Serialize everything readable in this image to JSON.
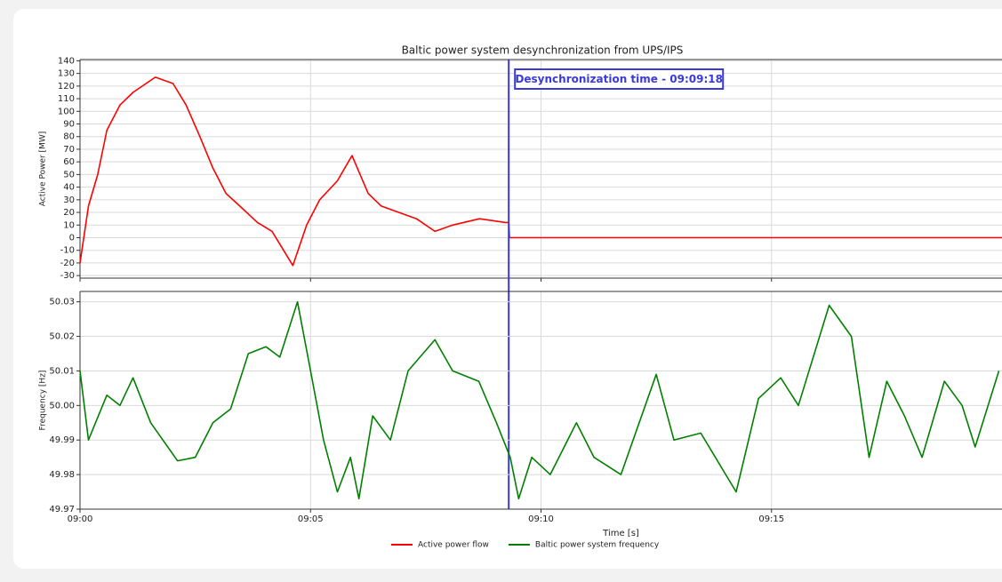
{
  "chart_data": [
    {
      "type": "line",
      "title": "Baltic power system desynchronization from UPS/IPS",
      "ylabel": "Active Power [MW]",
      "xlim": [
        "09:00:00",
        "09:20:00"
      ],
      "xticks": [
        "09:00:00",
        "09:05:00",
        "09:10:00",
        "09:15:00"
      ],
      "ylim": [
        -32,
        141
      ],
      "yticks": [
        -30,
        -20,
        -10,
        0,
        10,
        20,
        30,
        40,
        50,
        60,
        70,
        80,
        90,
        100,
        110,
        120,
        130,
        140
      ],
      "grid": true,
      "legend": "lower center",
      "annotation": {
        "text": "Desynchronization time - 09:09:18",
        "x": "09:09:18",
        "color": "#3a3ad8"
      },
      "x": [
        "09:00:00",
        "09:00:11",
        "09:00:23",
        "09:00:35",
        "09:00:52",
        "09:01:09",
        "09:01:38",
        "09:02:01",
        "09:02:18",
        "09:02:36",
        "09:02:53",
        "09:03:10",
        "09:03:28",
        "09:03:51",
        "09:04:10",
        "09:04:37",
        "09:04:55",
        "09:05:12",
        "09:05:35",
        "09:05:54",
        "09:06:15",
        "09:06:32",
        "09:07:18",
        "09:07:42",
        "09:08:05",
        "09:08:40",
        "09:09:14",
        "09:09:18",
        "09:09:19",
        "09:20:00"
      ],
      "series": [
        {
          "name": "Active power flow",
          "color": "#ff0000",
          "values": [
            -20,
            25,
            50,
            85,
            105,
            115,
            127,
            122,
            105,
            80,
            55,
            35,
            25,
            12,
            5,
            -22,
            10,
            30,
            45,
            65,
            35,
            25,
            15,
            5,
            10,
            15,
            12,
            12,
            0,
            0
          ]
        }
      ]
    },
    {
      "type": "line",
      "ylabel": "Frequency [Hz]",
      "xlabel": "Time [s]",
      "xlim": [
        "09:00:00",
        "09:20:00"
      ],
      "xticks": [
        {
          "value": "09:00:00",
          "label": "09:00"
        },
        {
          "value": "09:05:00",
          "label": "09:05"
        },
        {
          "value": "09:10:00",
          "label": "09:10"
        },
        {
          "value": "09:15:00",
          "label": "09:15"
        }
      ],
      "ylim": [
        49.97,
        50.033
      ],
      "yticks": [
        49.97,
        49.98,
        49.99,
        {
          "value": 50,
          "label": "50.00"
        },
        50.01,
        50.02,
        50.03
      ],
      "grid": true,
      "x": [
        "09:00:00",
        "09:00:11",
        "09:00:35",
        "09:00:52",
        "09:01:09",
        "09:01:32",
        "09:02:07",
        "09:02:30",
        "09:02:53",
        "09:03:16",
        "09:03:39",
        "09:04:02",
        "09:04:20",
        "09:04:43",
        "09:05:00",
        "09:05:17",
        "09:05:35",
        "09:05:52",
        "09:06:03",
        "09:06:21",
        "09:06:44",
        "09:07:07",
        "09:07:42",
        "09:08:05",
        "09:08:39",
        "09:09:02",
        "09:09:20",
        "09:09:31",
        "09:09:48",
        "09:10:12",
        "09:10:46",
        "09:11:09",
        "09:11:44",
        "09:12:30",
        "09:12:53",
        "09:13:28",
        "09:14:14",
        "09:14:43",
        "09:15:12",
        "09:15:35",
        "09:16:15",
        "09:16:44",
        "09:17:07",
        "09:17:30",
        "09:17:53",
        "09:18:16",
        "09:18:45",
        "09:19:08",
        "09:19:25",
        "09:19:56"
      ],
      "series": [
        {
          "name": "Baltic power system frequency",
          "color": "#008000",
          "values": [
            50.01,
            49.99,
            50.003,
            50.0,
            50.008,
            49.995,
            49.984,
            49.985,
            49.995,
            49.999,
            50.015,
            50.017,
            50.014,
            50.03,
            50.01,
            49.99,
            49.975,
            49.985,
            49.973,
            49.997,
            49.99,
            50.01,
            50.019,
            50.01,
            50.007,
            49.995,
            49.985,
            49.973,
            49.985,
            49.98,
            49.995,
            49.985,
            49.98,
            50.009,
            49.99,
            49.992,
            49.975,
            50.002,
            50.008,
            50.0,
            50.029,
            50.02,
            49.985,
            50.007,
            49.997,
            49.985,
            50.007,
            50.0,
            49.988,
            50.01
          ]
        }
      ]
    }
  ]
}
